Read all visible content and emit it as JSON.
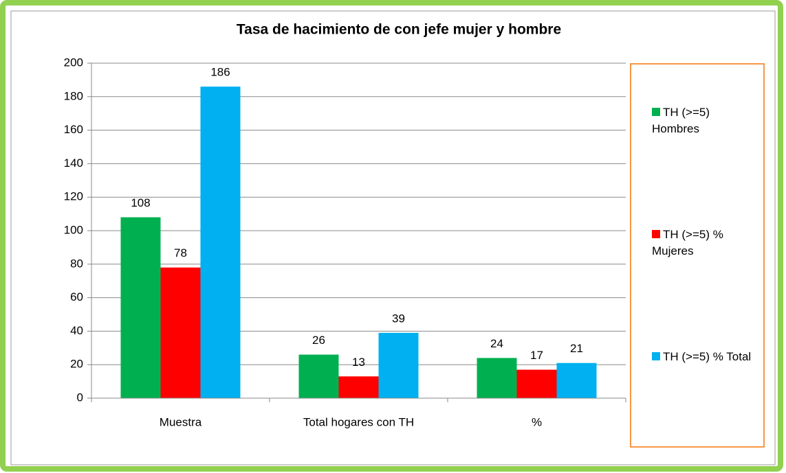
{
  "chart_data": {
    "type": "bar",
    "title": "Tasa de hacimiento de con jefe mujer y hombre",
    "categories": [
      "Muestra",
      "Total hogares con TH",
      "%"
    ],
    "series": [
      {
        "name": "TH (>=5) Hombres",
        "color": "#00b050",
        "values": [
          108,
          26,
          24
        ]
      },
      {
        "name": "TH (>=5) % Mujeres",
        "color": "#ff0000",
        "values": [
          78,
          13,
          17
        ]
      },
      {
        "name": "TH (>=5) % Total",
        "color": "#00b0f0",
        "values": [
          186,
          39,
          21
        ]
      }
    ],
    "ylim": [
      0,
      200
    ],
    "yticks": [
      0,
      20,
      40,
      60,
      80,
      100,
      120,
      140,
      160,
      180,
      200
    ],
    "grid": true,
    "legend": "right"
  }
}
